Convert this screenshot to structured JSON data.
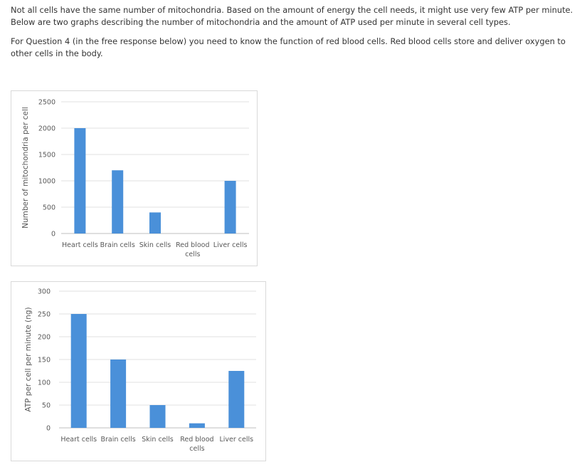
{
  "text": {
    "paragraph1": "Not all cells have the same number of mitochondria. Based on the amount of energy the cell needs, it might use very few ATP per minute. Below are two graphs describing the number of mitochondria and the amount of ATP used per minute in several cell types.",
    "paragraph2": "For Question 4 (in the free response below) you need to know the function of red blood cells. Red blood cells store and deliver oxygen to other cells in the body."
  },
  "chart_data": [
    {
      "type": "bar",
      "title": "",
      "xlabel": "",
      "ylabel": "Number of mitochondria per cell",
      "categories": [
        "Heart cells",
        "Brain cells",
        "Skin cells",
        "Red blood cells",
        "Liver cells"
      ],
      "category_lines": [
        [
          "Heart cells"
        ],
        [
          "Brain cells"
        ],
        [
          "Skin cells"
        ],
        [
          "Red blood",
          "cells"
        ],
        [
          "Liver cells"
        ]
      ],
      "values": [
        2000,
        1200,
        400,
        0,
        1000
      ],
      "ylim": [
        0,
        2500
      ],
      "yticks": [
        0,
        500,
        1000,
        1500,
        2000,
        2500
      ],
      "grid": true,
      "bar_color": "#4a90d9"
    },
    {
      "type": "bar",
      "title": "",
      "xlabel": "",
      "ylabel": "ATP per cell per minute (ng)",
      "categories": [
        "Heart cells",
        "Brain cells",
        "Skin cells",
        "Red blood cells",
        "Liver cells"
      ],
      "category_lines": [
        [
          "Heart cells"
        ],
        [
          "Brain cells"
        ],
        [
          "Skin cells"
        ],
        [
          "Red blood",
          "cells"
        ],
        [
          "Liver cells"
        ]
      ],
      "values": [
        250,
        150,
        50,
        10,
        125
      ],
      "ylim": [
        0,
        300
      ],
      "yticks": [
        0,
        50,
        100,
        150,
        200,
        250,
        300
      ],
      "grid": true,
      "bar_color": "#4a90d9"
    }
  ]
}
